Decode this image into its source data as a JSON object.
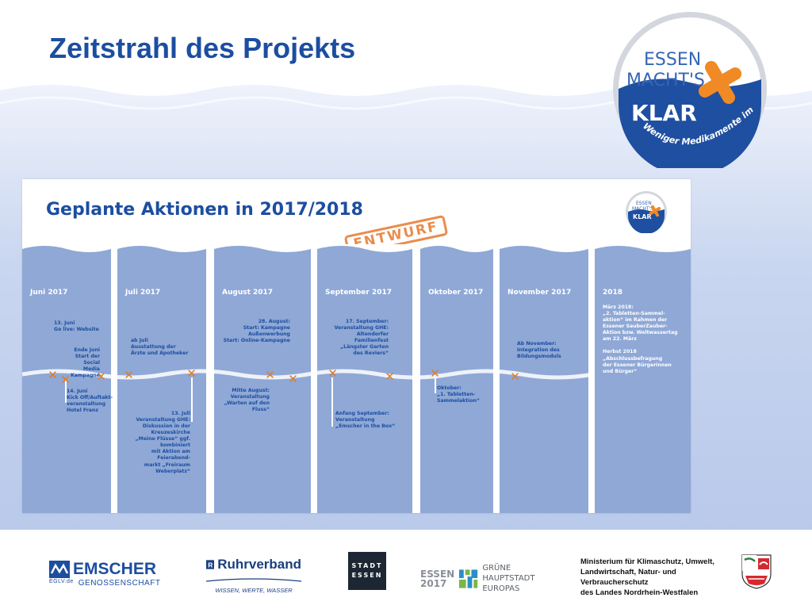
{
  "slide": {
    "title": "Zeitstrahl des Projekts"
  },
  "badge": {
    "line1": "ESSEN",
    "line2": "MACHT'S",
    "klar": "KLAR",
    "tagline": "Weniger Medikamente im Abwasser"
  },
  "panel": {
    "title": "Geplante Aktionen in 2017/2018",
    "stamp": "ENTWURF",
    "mini_badge": {
      "line1": "ESSEN",
      "line2": "MACHT'S",
      "klar": "KLAR"
    },
    "months": [
      "Juni 2017",
      "Juli 2017",
      "August 2017",
      "September 2017",
      "Oktober 2017",
      "November 2017",
      "2018"
    ],
    "notes": {
      "jun_golive": "13. Juni\nGo live: Website",
      "jun_social": "Ende Juni\nStart der Social\nMedia Kampagne",
      "jun_kickoff": "14. Juni\nKick Off/Auftakt-\nveranstaltung\nHotel Franz",
      "jul_aerzte": "ab Juli\nAusstattung der\nÄrzte und Apotheker",
      "jul_ghe": "13. Juli\nVeranstaltung GHE:\nDiskussion in der Kreuzeskirche\n„Meine Flüsse“ ggf. kombiniert\nmit Aktion am Feierabend-\nmarkt „Freiraum Weberplatz“",
      "aug_kampagne": "28. August:\nStart: Kampagne\nAußenwerbung\nStart: Online-Kampagne",
      "aug_fluss": "Mitte August:\nVeranstaltung\n„Warten auf den Fluss“",
      "sep_familienfest": "17. September:\nVeranstaltung GHE:\nAltendorfer Familienfest\n„Längster Garten\ndes Reviers“",
      "sep_emscher": "Anfang September:\nVeranstaltung\n„Emscher in the Box“",
      "okt_tabletten": "Oktober:\n„1. Tabletten-\nSammelaktion“",
      "nov_bildung": "Ab November:\nIntegration des\nBildungsmoduls",
      "y2018": "März 2018:\n„2. Tabletten-Sammel-\naktion“ im Rahmen der\nEssener SauberZauber-\nAktion bzw. Weltwassertag\nam 22. März\n\nHerbst 2018\n„Abschlussbefragung\nder Essener Bürgerinnen\nund Bürger“"
    }
  },
  "footer": {
    "emscher": {
      "name": "EMSCHER",
      "sub": "GENOSSENSCHAFT",
      "prefix": "EGLV.de"
    },
    "ruhrverband": {
      "name": "Ruhrverband",
      "sub": "WISSEN, WERTE, WASSER"
    },
    "stadt_essen": {
      "line1": "STADT",
      "line2": "ESSEN"
    },
    "essen2017": {
      "line1": "ESSEN",
      "line2": "2017",
      "gruene1": "GRÜNE HAUPTSTADT",
      "gruene2": "EUROPAS"
    },
    "ministry": "Ministerium für Klimaschutz, Umwelt,\nLandwirtschaft, Natur- und Verbraucherschutz\ndes Landes Nordrhein-Westfalen"
  },
  "colors": {
    "title_blue": "#1c4ea0",
    "column_blue": "#8fa8d6",
    "accent_orange": "#e37a1f"
  },
  "icons": [
    "badge-logo",
    "x-marker-icon",
    "nrw-crest-icon"
  ]
}
